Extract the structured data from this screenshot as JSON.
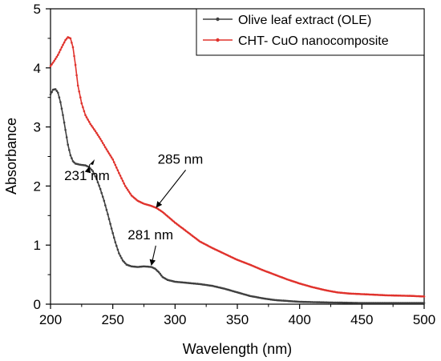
{
  "chart_data": {
    "type": "line",
    "xlabel": "Wavelength (nm)",
    "ylabel": "Absorbance",
    "xlim": [
      200,
      500
    ],
    "ylim": [
      0,
      5
    ],
    "xticks": [
      "200",
      "250",
      "300",
      "350",
      "400",
      "450",
      "500"
    ],
    "yticks": [
      "0",
      "1",
      "2",
      "3",
      "4",
      "5"
    ],
    "grid": false,
    "legend_position": "top-right",
    "series": [
      {
        "name": "Olive leaf extract (OLE)",
        "color": "#404040",
        "marker": "dot",
        "points": [
          [
            200,
            3.55
          ],
          [
            202,
            3.63
          ],
          [
            204,
            3.64
          ],
          [
            206,
            3.58
          ],
          [
            208,
            3.42
          ],
          [
            210,
            3.2
          ],
          [
            212,
            2.95
          ],
          [
            214,
            2.7
          ],
          [
            216,
            2.52
          ],
          [
            218,
            2.42
          ],
          [
            220,
            2.38
          ],
          [
            224,
            2.36
          ],
          [
            228,
            2.35
          ],
          [
            231,
            2.32
          ],
          [
            234,
            2.25
          ],
          [
            237,
            2.12
          ],
          [
            240,
            1.95
          ],
          [
            243,
            1.75
          ],
          [
            246,
            1.52
          ],
          [
            249,
            1.28
          ],
          [
            252,
            1.05
          ],
          [
            255,
            0.86
          ],
          [
            258,
            0.74
          ],
          [
            261,
            0.67
          ],
          [
            265,
            0.64
          ],
          [
            270,
            0.63
          ],
          [
            275,
            0.64
          ],
          [
            281,
            0.63
          ],
          [
            284,
            0.6
          ],
          [
            287,
            0.54
          ],
          [
            290,
            0.46
          ],
          [
            294,
            0.41
          ],
          [
            300,
            0.38
          ],
          [
            310,
            0.36
          ],
          [
            320,
            0.34
          ],
          [
            330,
            0.31
          ],
          [
            340,
            0.26
          ],
          [
            350,
            0.2
          ],
          [
            360,
            0.14
          ],
          [
            370,
            0.1
          ],
          [
            380,
            0.07
          ],
          [
            400,
            0.04
          ],
          [
            420,
            0.03
          ],
          [
            450,
            0.02
          ],
          [
            480,
            0.02
          ],
          [
            500,
            0.02
          ]
        ]
      },
      {
        "name": "CHT- CuO nanocomposite",
        "color": "#e0322c",
        "marker": "dot",
        "points": [
          [
            200,
            4.03
          ],
          [
            203,
            4.12
          ],
          [
            206,
            4.22
          ],
          [
            209,
            4.35
          ],
          [
            212,
            4.47
          ],
          [
            214,
            4.52
          ],
          [
            216,
            4.5
          ],
          [
            218,
            4.35
          ],
          [
            220,
            4.05
          ],
          [
            222,
            3.7
          ],
          [
            225,
            3.4
          ],
          [
            228,
            3.2
          ],
          [
            232,
            3.05
          ],
          [
            236,
            2.93
          ],
          [
            240,
            2.8
          ],
          [
            245,
            2.62
          ],
          [
            250,
            2.45
          ],
          [
            255,
            2.22
          ],
          [
            260,
            2.0
          ],
          [
            265,
            1.84
          ],
          [
            270,
            1.75
          ],
          [
            275,
            1.7
          ],
          [
            280,
            1.67
          ],
          [
            285,
            1.63
          ],
          [
            290,
            1.56
          ],
          [
            295,
            1.47
          ],
          [
            300,
            1.38
          ],
          [
            310,
            1.22
          ],
          [
            320,
            1.06
          ],
          [
            330,
            0.95
          ],
          [
            340,
            0.85
          ],
          [
            350,
            0.75
          ],
          [
            360,
            0.67
          ],
          [
            370,
            0.58
          ],
          [
            380,
            0.5
          ],
          [
            390,
            0.42
          ],
          [
            400,
            0.35
          ],
          [
            410,
            0.29
          ],
          [
            420,
            0.24
          ],
          [
            430,
            0.2
          ],
          [
            440,
            0.18
          ],
          [
            450,
            0.17
          ],
          [
            470,
            0.15
          ],
          [
            490,
            0.14
          ],
          [
            500,
            0.13
          ]
        ]
      }
    ],
    "annotations": [
      {
        "text": "231 nm",
        "x": 231,
        "y": 2.32,
        "tip_at_end": false,
        "label_x": 211,
        "label_y": 2.1
      },
      {
        "text": "281 nm",
        "x": 281,
        "y": 0.66,
        "tip_at_end": true,
        "label_x": 262,
        "label_y": 1.1
      },
      {
        "text": "285 nm",
        "x": 285,
        "y": 1.64,
        "tip_at_end": true,
        "label_x": 286,
        "label_y": 2.38
      }
    ]
  }
}
